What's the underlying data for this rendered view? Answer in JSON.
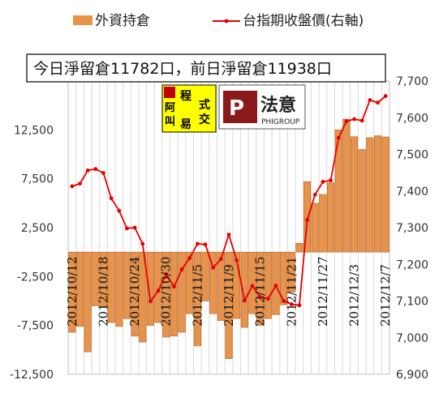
{
  "chart_data": {
    "type": "bar+line",
    "legend": {
      "bar_label": "外資持倉",
      "line_label": "台指期收盤價(右軸)"
    },
    "banner": "今日淨留倉11782口，前日淨留倉11938口",
    "logos": [
      {
        "name": "程式交易",
        "chars": [
          "程",
          "式",
          "阿",
          "交",
          "叫",
          "易",
          "阿",
          "叫"
        ]
      },
      {
        "name": "PHIGROUP",
        "text": "法意",
        "sub": "PHIGROUP"
      }
    ],
    "left_axis": {
      "ylim": [
        -12500,
        17500
      ],
      "ticks": [
        -12500,
        -7500,
        -2500,
        2500,
        7500,
        12500
      ]
    },
    "right_axis": {
      "ylim": [
        6900,
        7700
      ],
      "ticks": [
        6900,
        7000,
        7100,
        7200,
        7300,
        7400,
        7500,
        7600,
        7700
      ]
    },
    "x_tick_labels": [
      "2012/10/12",
      "2012/10/18",
      "2012/10/24",
      "2012/10/30",
      "2012/11/5",
      "2012/11/9",
      "2012/11/15",
      "2012/11/21",
      "2012/11/27",
      "2012/12/3",
      "2012/12/7"
    ],
    "x_tick_index": [
      0,
      4,
      8,
      12,
      16,
      20,
      24,
      28,
      32,
      36,
      40
    ],
    "bars": [
      -8200,
      -7600,
      -10200,
      -5500,
      -5600,
      -7200,
      -7600,
      -6800,
      -8600,
      -9200,
      -7500,
      -7200,
      -8700,
      -8600,
      -8200,
      -6300,
      -9600,
      -5000,
      -6300,
      -7000,
      -10900,
      -6800,
      -7700,
      -6300,
      -7500,
      -6800,
      -6400,
      -5400,
      -4100,
      900,
      7200,
      5000,
      5900,
      7100,
      12500,
      13600,
      11800,
      10500,
      11700,
      11900,
      11782
    ],
    "line": [
      7413,
      7420,
      7456,
      7460,
      7449,
      7380,
      7346,
      7298,
      7300,
      7256,
      7099,
      7128,
      7173,
      7139,
      7186,
      7217,
      7256,
      7254,
      7191,
      7214,
      7281,
      7211,
      7101,
      7141,
      7111,
      7106,
      7142,
      7100,
      7091,
      7088,
      7321,
      7390,
      7425,
      7429,
      7545,
      7590,
      7596,
      7592,
      7648,
      7641,
      7659
    ],
    "colors": {
      "bar": "#E8924A",
      "bar_edge": "#A2531B",
      "line": "#E60000",
      "grid": "#D9D9D9",
      "banner_bg": "#FFFFFF"
    }
  }
}
